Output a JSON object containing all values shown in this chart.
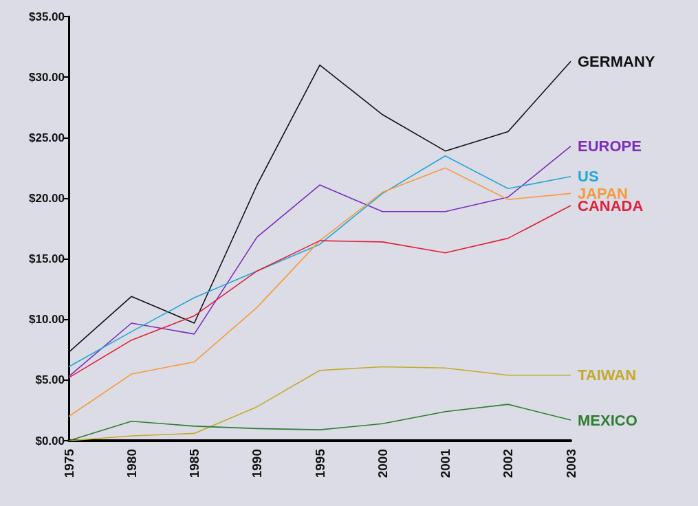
{
  "chart_data": {
    "type": "line",
    "categories": [
      "1975",
      "1980",
      "1985",
      "1990",
      "1995",
      "2000",
      "2001",
      "2002",
      "2003"
    ],
    "series": [
      {
        "name": "GERMANY",
        "color": "#111111",
        "values": [
          7.3,
          11.9,
          9.7,
          21.1,
          31,
          26.9,
          23.9,
          25.5,
          31.3
        ]
      },
      {
        "name": "EUROPE",
        "color": "#7b2cbf",
        "values": [
          5.3,
          9.7,
          8.8,
          16.8,
          21.1,
          18.9,
          18.9,
          20.1,
          24.3
        ]
      },
      {
        "name": "US",
        "color": "#22a7d6",
        "values": [
          6.1,
          9,
          11.8,
          14,
          16.2,
          20.4,
          23.5,
          20.8,
          21.8
        ]
      },
      {
        "name": "JAPAN",
        "color": "#f59a3c",
        "values": [
          2,
          5.5,
          6.5,
          11,
          16.5,
          20.5,
          22.5,
          19.9,
          20.4
        ]
      },
      {
        "name": "CANADA",
        "color": "#e0203a",
        "values": [
          5.2,
          8.3,
          10.3,
          14,
          16.5,
          16.4,
          15.5,
          16.7,
          19.4
        ]
      },
      {
        "name": "TAIWAN",
        "color": "#c4a92a",
        "values": [
          0,
          0.4,
          0.6,
          2.8,
          5.8,
          6.1,
          6,
          5.4,
          5.4
        ]
      },
      {
        "name": "MEXICO",
        "color": "#2e7d32",
        "values": [
          0,
          1.6,
          1.2,
          1,
          0.9,
          1.4,
          2.4,
          3,
          1.7
        ]
      }
    ],
    "ylim": [
      0,
      35
    ],
    "yticks": [
      {
        "value": 0,
        "label": "$0.00"
      },
      {
        "value": 5,
        "label": "$5.00"
      },
      {
        "value": 10,
        "label": "$10.00"
      },
      {
        "value": 15,
        "label": "$15.00"
      },
      {
        "value": 20,
        "label": "$20.00"
      },
      {
        "value": 25,
        "label": "$25.00"
      },
      {
        "value": 30,
        "label": "$30.00"
      },
      {
        "value": 35,
        "label": "$35.00"
      }
    ],
    "legend": false,
    "marker": "none",
    "line_style": "solid"
  }
}
